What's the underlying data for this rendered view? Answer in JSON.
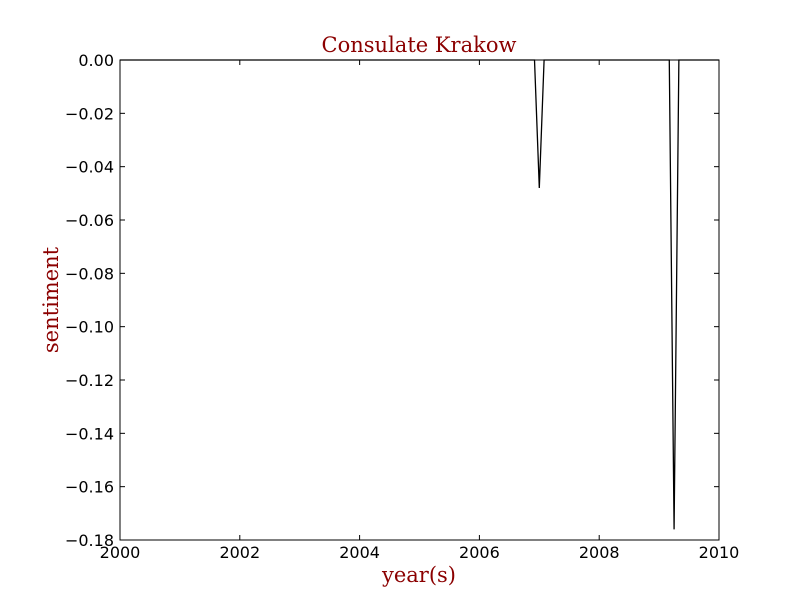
{
  "chart_data": {
    "type": "line",
    "title": "Consulate Krakow",
    "xlabel": "year(s)",
    "ylabel": "sentiment",
    "xlim": [
      2000,
      2010
    ],
    "ylim": [
      -0.18,
      0.0
    ],
    "x_ticks": [
      2000,
      2002,
      2004,
      2006,
      2008,
      2010
    ],
    "x_tick_labels": [
      "2000",
      "2002",
      "2004",
      "2006",
      "2008",
      "2010"
    ],
    "y_ticks": [
      0.0,
      -0.02,
      -0.04,
      -0.06,
      -0.08,
      -0.1,
      -0.12,
      -0.14,
      -0.16,
      -0.18
    ],
    "y_tick_labels": [
      "0.00",
      "−0.02",
      "−0.04",
      "−0.06",
      "−0.08",
      "−0.10",
      "−0.12",
      "−0.14",
      "−0.16",
      "−0.18"
    ],
    "grid": false,
    "series": [
      {
        "x": [
          2000.0,
          2006.92,
          2007.0,
          2007.08,
          2009.17,
          2009.25,
          2009.33,
          2010.0
        ],
        "y": [
          0.0,
          0.0,
          -0.048,
          0.0,
          0.0,
          -0.176,
          0.0,
          0.0
        ]
      }
    ]
  },
  "colors": {
    "title": "#8b0000",
    "axis_label": "#8b0000",
    "line": "#000000",
    "axes": "#000000"
  }
}
